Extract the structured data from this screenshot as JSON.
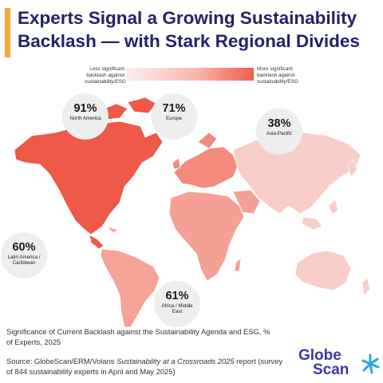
{
  "header": {
    "title": "Experts Signal a Growing Sustainability Backlash — with Stark Regional Divides",
    "accent_color": "#f2a93b",
    "title_color": "#24216b"
  },
  "legend": {
    "low_label": "Less significant backlash against sustainability/ESG",
    "high_label": "More significant backlash against sustainability/ESG",
    "low_color": "#fdeeee",
    "high_color": "#ef5d4c"
  },
  "map": {
    "regions": [
      {
        "name": "North America",
        "value": "91%",
        "fill": "#ee5948"
      },
      {
        "name": "Europe",
        "value": "71%",
        "fill": "#f38a7c"
      },
      {
        "name": "Asia-Pacific",
        "value": "38%",
        "fill": "#f9cdc8"
      },
      {
        "name": "Latin America / Caribbean",
        "value": "60%",
        "fill": "#f5a396"
      },
      {
        "name": "Africa / Middle East",
        "value": "61%",
        "fill": "#f5a094"
      }
    ]
  },
  "footer": {
    "note": "Significance of Current Backlash against the Sustainability Agenda and ESG, % of Experts, 2025",
    "source_prefix": "Source: GlobeScan/ERM/Volans ",
    "source_italic": "Sustainability at a Crossroads 2025",
    "source_suffix": " report (survey of 844 sustainability experts in April and May 2025)"
  },
  "logo": {
    "word1": "Globe",
    "word2": "Scan",
    "brand_color": "#3b38a8",
    "accent_color": "#29a8df"
  }
}
